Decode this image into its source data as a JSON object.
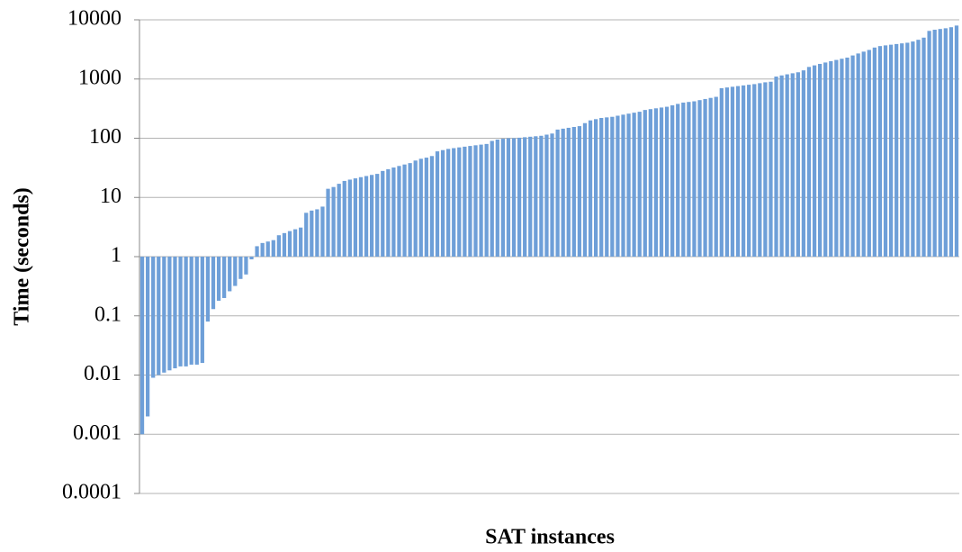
{
  "chart_data": {
    "type": "bar",
    "y_label": "Time (seconds)",
    "x_label": "SAT instances",
    "log_scale": true,
    "grid": true,
    "color": "#6e9fd8",
    "ylim": [
      0.0001,
      10000
    ],
    "yticks": [
      0.0001,
      0.001,
      0.01,
      0.1,
      1,
      10,
      100,
      1000,
      10000
    ],
    "categories": [
      null,
      null,
      null,
      null,
      null,
      null,
      null,
      null,
      null,
      null,
      null,
      null,
      null,
      null,
      null,
      null,
      null,
      null,
      null,
      null,
      null,
      null,
      null,
      null,
      null,
      null,
      null,
      null,
      null,
      null,
      null,
      null,
      null,
      null,
      null,
      null,
      null,
      null,
      null,
      null,
      null,
      null,
      null,
      null,
      null,
      null,
      null,
      null,
      null,
      null,
      null,
      null,
      null,
      null,
      null,
      null,
      null,
      null,
      null,
      null,
      null,
      null,
      null,
      null,
      null,
      null,
      null,
      null,
      null,
      null,
      null,
      null,
      null,
      null,
      null,
      null,
      null,
      null,
      null,
      null,
      null,
      null,
      null,
      null,
      null,
      null,
      null,
      null,
      null,
      null,
      null,
      null,
      null,
      null,
      null,
      null,
      null,
      null,
      null,
      null,
      null,
      null,
      null,
      null,
      null,
      null,
      null,
      null,
      null,
      null,
      null,
      null,
      null,
      null,
      null,
      null,
      null,
      null,
      null,
      null,
      null,
      null,
      null,
      null,
      null,
      null,
      null,
      null,
      null,
      null,
      null,
      null,
      null,
      null,
      null,
      null,
      null,
      null,
      null,
      null,
      null,
      null,
      null,
      null,
      null,
      null,
      null,
      null,
      null,
      null
    ],
    "values": [
      0.001,
      0.002,
      0.009,
      0.01,
      0.011,
      0.012,
      0.013,
      0.014,
      0.014,
      0.015,
      0.015,
      0.016,
      0.08,
      0.13,
      0.18,
      0.2,
      0.26,
      0.32,
      0.42,
      0.5,
      0.9,
      1.5,
      1.7,
      1.8,
      1.9,
      2.3,
      2.5,
      2.7,
      2.9,
      3.1,
      5.5,
      6,
      6.3,
      7,
      14,
      15,
      17,
      19,
      20,
      21,
      22,
      23,
      24,
      25,
      28,
      30,
      32,
      34,
      36,
      38,
      42,
      45,
      47,
      50,
      60,
      63,
      66,
      68,
      70,
      72,
      74,
      76,
      78,
      80,
      90,
      95,
      98,
      100,
      100,
      102,
      104,
      106,
      108,
      110,
      115,
      120,
      140,
      145,
      150,
      155,
      160,
      180,
      200,
      210,
      220,
      225,
      230,
      240,
      250,
      260,
      270,
      280,
      300,
      310,
      320,
      330,
      340,
      360,
      380,
      400,
      410,
      420,
      440,
      460,
      480,
      500,
      700,
      720,
      740,
      760,
      780,
      800,
      820,
      850,
      880,
      900,
      1100,
      1150,
      1200,
      1250,
      1300,
      1400,
      1600,
      1700,
      1800,
      1900,
      2000,
      2100,
      2200,
      2300,
      2500,
      2700,
      2900,
      3100,
      3400,
      3600,
      3700,
      3800,
      3900,
      4000,
      4100,
      4300,
      4600,
      5000,
      6500,
      6800,
      7000,
      7200,
      7500,
      8000
    ]
  }
}
